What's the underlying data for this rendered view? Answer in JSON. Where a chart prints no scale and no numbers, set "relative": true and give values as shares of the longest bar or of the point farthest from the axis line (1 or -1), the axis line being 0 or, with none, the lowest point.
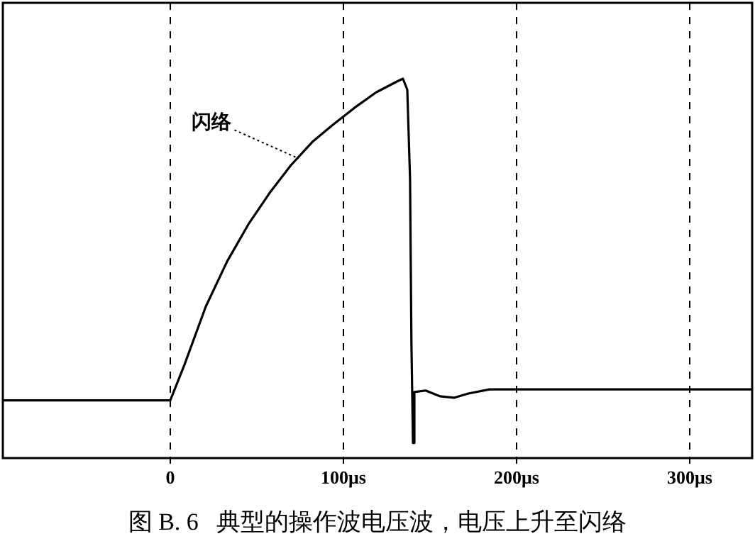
{
  "chart_data": {
    "type": "line",
    "title": "图 B. 6   典型的操作波电压波，电压上升至闪络",
    "relative": true,
    "x": [
      -96.7,
      0,
      8.2,
      20.5,
      32.8,
      45.1,
      57.4,
      69.7,
      82,
      94.3,
      106.6,
      118.9,
      131.1,
      134.4,
      136.9,
      138.5,
      139.3,
      140.2,
      141,
      147.5,
      155.7,
      163.9,
      172.1,
      184.4,
      336.1
    ],
    "series": [
      {
        "color": "#000000",
        "values": [
          0.152,
          0.152,
          0.246,
          0.399,
          0.518,
          0.616,
          0.699,
          0.772,
          0.833,
          0.88,
          0.924,
          0.964,
          0.993,
          1,
          0.971,
          0.736,
          0.301,
          0.04,
          0.174,
          0.178,
          0.163,
          0.159,
          0.17,
          0.181,
          0.181
        ]
      }
    ],
    "xlim": [
      -96.7,
      336.1
    ],
    "xticks": [
      0,
      {
        "value": 100,
        "label": "100μs"
      },
      {
        "value": 200,
        "label": "200μs"
      },
      {
        "value": 300,
        "label": "300μs"
      }
    ],
    "grid": "x",
    "legend": false,
    "marker": "none",
    "line_style": "solid",
    "annotations": [
      {
        "text": "闪络",
        "x": 74,
        "y": 0.79
      }
    ]
  }
}
